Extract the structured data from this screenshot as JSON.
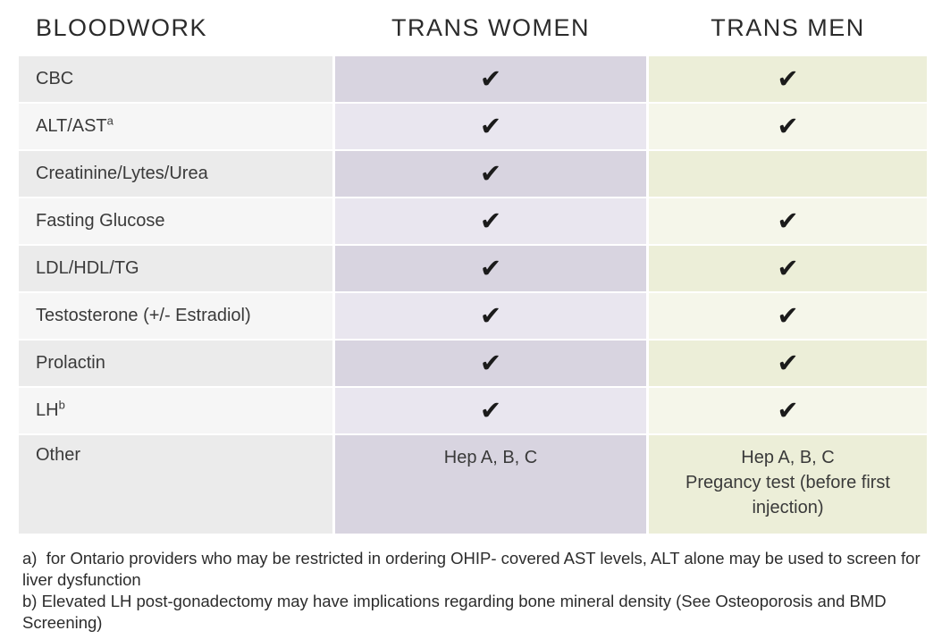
{
  "table": {
    "headers": [
      {
        "label": "BLOODWORK"
      },
      {
        "label": "TRANS WOMEN"
      },
      {
        "label": "TRANS MEN"
      }
    ],
    "rows": [
      {
        "label": "CBC",
        "sup": "",
        "tall": false,
        "trans_women": "check",
        "trans_men": "check"
      },
      {
        "label": "ALT/AST",
        "sup": "a",
        "tall": false,
        "trans_women": "check",
        "trans_men": "check"
      },
      {
        "label": "Creatinine/Lytes/Urea",
        "sup": "",
        "tall": false,
        "trans_women": "check",
        "trans_men": "none"
      },
      {
        "label": "Fasting Glucose",
        "sup": "",
        "tall": false,
        "trans_women": "check",
        "trans_men": "check"
      },
      {
        "label": "LDL/HDL/TG",
        "sup": "",
        "tall": false,
        "trans_women": "check",
        "trans_men": "check"
      },
      {
        "label": "Testosterone (+/- Estradiol)",
        "sup": "",
        "tall": false,
        "trans_women": "check",
        "trans_men": "check"
      },
      {
        "label": "Prolactin",
        "sup": "",
        "tall": false,
        "trans_women": "check",
        "trans_men": "check"
      },
      {
        "label": "LH",
        "sup": "b",
        "tall": false,
        "trans_women": "check",
        "trans_men": "check"
      },
      {
        "label": "Other",
        "sup": "",
        "tall": true,
        "trans_women": [
          "Hep A, B, C"
        ],
        "trans_men": [
          "Hep A, B, C",
          "Pregancy test (before first injection)"
        ]
      }
    ]
  },
  "icons": {
    "check_glyph": "✔",
    "check_semantic": "check-icon"
  },
  "colors": {
    "bloodwork_col_dark": "#ebebeb",
    "bloodwork_col_light": "#f6f6f6",
    "trans_women_col_dark": "#d8d4e0",
    "trans_women_col_light": "#e9e6ef",
    "trans_men_col_dark": "#eceed8",
    "trans_men_col_light": "#f5f6ea",
    "check": "#1b1b1b",
    "text": "#3a3a3a"
  },
  "footnotes": [
    "a)  for Ontario providers who may be restricted in ordering OHIP- covered AST levels, ALT alone may be used to screen for liver dysfunction",
    "b) Elevated LH post-gonadectomy may have implications regarding bone mineral density (See Osteoporosis and BMD Screening)"
  ]
}
